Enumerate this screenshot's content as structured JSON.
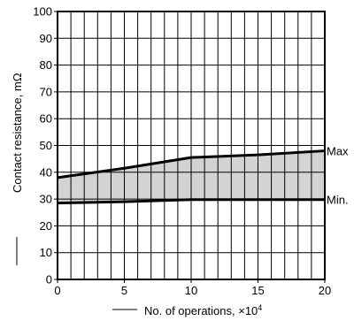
{
  "chart_data": {
    "type": "area",
    "xlabel": "No. of operations, ×10",
    "xlabel_superscript": "4",
    "ylabel": "Contact resistance, mΩ",
    "xlim": [
      0,
      20
    ],
    "ylim": [
      0,
      100
    ],
    "x_ticks": [
      0,
      5,
      10,
      15,
      20
    ],
    "y_ticks": [
      0,
      10,
      20,
      30,
      40,
      50,
      60,
      70,
      80,
      90,
      100
    ],
    "grid": true,
    "grid_x_step": 1,
    "grid_y_step": 10,
    "band_fill": "#d3d3d3",
    "line_color": "#000000",
    "series": [
      {
        "name": "Max",
        "x": [
          0,
          5,
          10,
          15,
          20
        ],
        "y": [
          38,
          41.5,
          45.5,
          46.5,
          48
        ]
      },
      {
        "name": "Min.",
        "x": [
          0,
          5,
          10,
          15,
          20
        ],
        "y": [
          28.5,
          29,
          29.8,
          29.8,
          29.8
        ]
      }
    ]
  }
}
